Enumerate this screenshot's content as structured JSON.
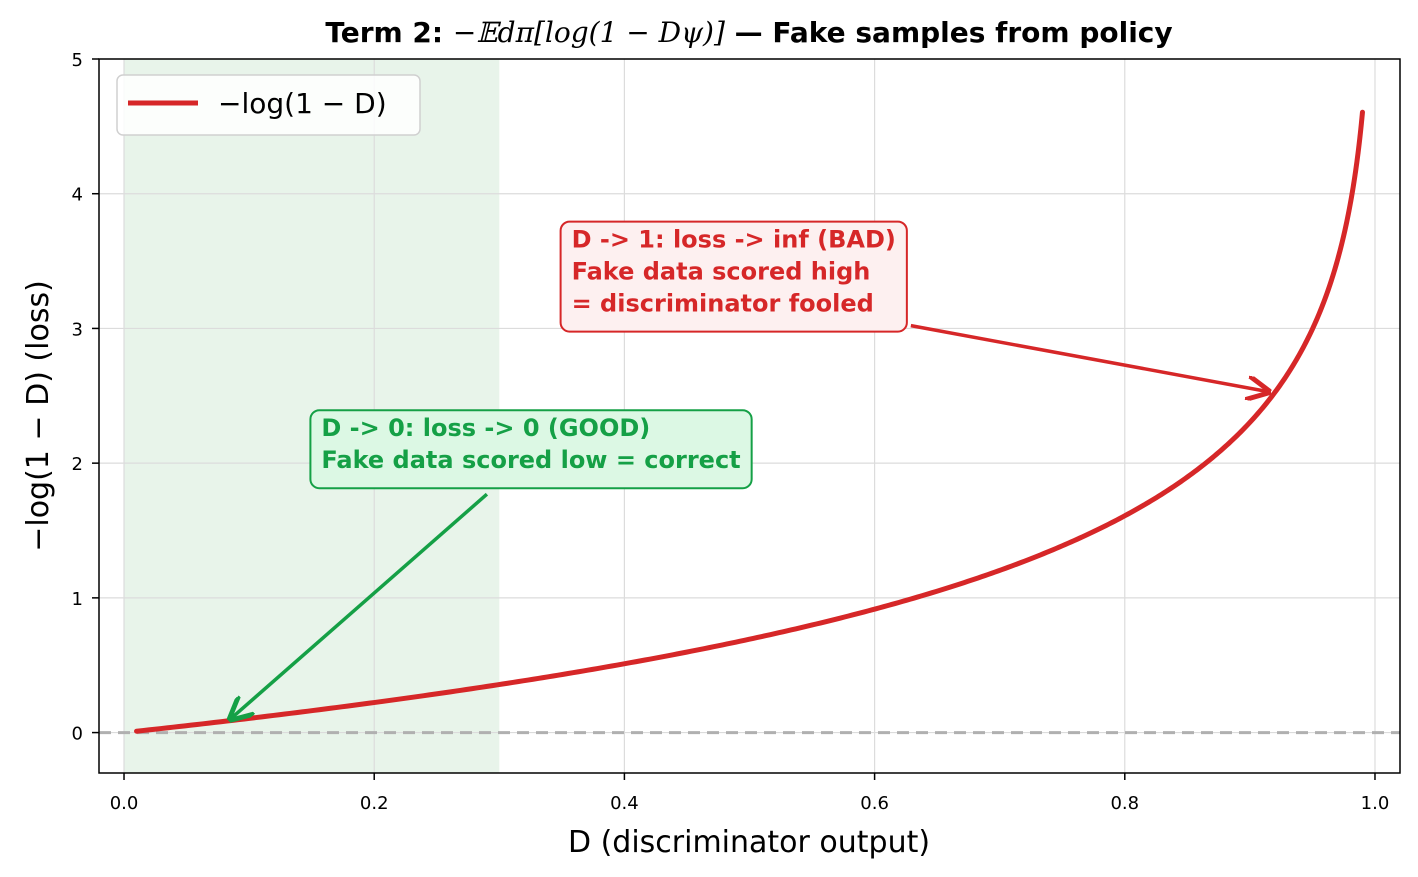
{
  "chart_data": {
    "type": "line",
    "title": {
      "prefix_bold": "Term 2: ",
      "formula": "−𝔼dπ[log(1 − Dψ)]",
      "suffix_bold": " — Fake samples from policy"
    },
    "xlabel": "D (discriminator output)",
    "ylabel": "−log(1 − D)  (loss)",
    "xlim": [
      -0.02,
      1.02
    ],
    "ylim": [
      -0.3,
      5
    ],
    "x_ticks": [
      0.0,
      0.2,
      0.4,
      0.6,
      0.8,
      1.0
    ],
    "x_tick_labels": [
      "0.0",
      "0.2",
      "0.4",
      "0.6",
      "0.8",
      "1.0"
    ],
    "y_ticks": [
      0,
      1,
      2,
      3,
      4,
      5
    ],
    "y_tick_labels": [
      "0",
      "1",
      "2",
      "3",
      "4",
      "5"
    ],
    "grid": true,
    "legend_position": "top-left",
    "series": [
      {
        "name": "−log(1 − D)",
        "color": "#d62728",
        "x": [
          0.01,
          0.05,
          0.1,
          0.15,
          0.2,
          0.25,
          0.3,
          0.35,
          0.4,
          0.45,
          0.5,
          0.55,
          0.6,
          0.65,
          0.7,
          0.75,
          0.8,
          0.85,
          0.9,
          0.92,
          0.94,
          0.95,
          0.96,
          0.97,
          0.98,
          0.985,
          0.99
        ],
        "y": [
          0.01,
          0.051,
          0.105,
          0.163,
          0.223,
          0.288,
          0.357,
          0.431,
          0.511,
          0.598,
          0.693,
          0.799,
          0.916,
          1.05,
          1.204,
          1.386,
          1.609,
          1.897,
          2.303,
          2.526,
          2.813,
          2.996,
          3.219,
          3.507,
          3.912,
          4.2,
          4.605
        ]
      }
    ],
    "shaded_region": {
      "x": [
        0.0,
        0.3
      ],
      "color": "#e8f4ea"
    },
    "reference_line": {
      "y": 0,
      "style": "dashed",
      "color": "#b0b0b0"
    },
    "annotations": [
      {
        "lines": [
          "D -> 1: loss -> inf (BAD)",
          "Fake data scored high",
          "= discriminator fooled"
        ],
        "color": "#d62728",
        "box_fill": "#fdf0f0",
        "target": [
          0.915,
          2.53
        ],
        "text_pos": [
          0.345,
          3.6
        ]
      },
      {
        "lines": [
          "D -> 0: loss -> 0 (GOOD)",
          "Fake data scored low = correct"
        ],
        "color": "#15a046",
        "box_fill": "#dcf8e4",
        "target": [
          0.085,
          0.1
        ],
        "text_pos": [
          0.145,
          2.2
        ]
      }
    ]
  }
}
